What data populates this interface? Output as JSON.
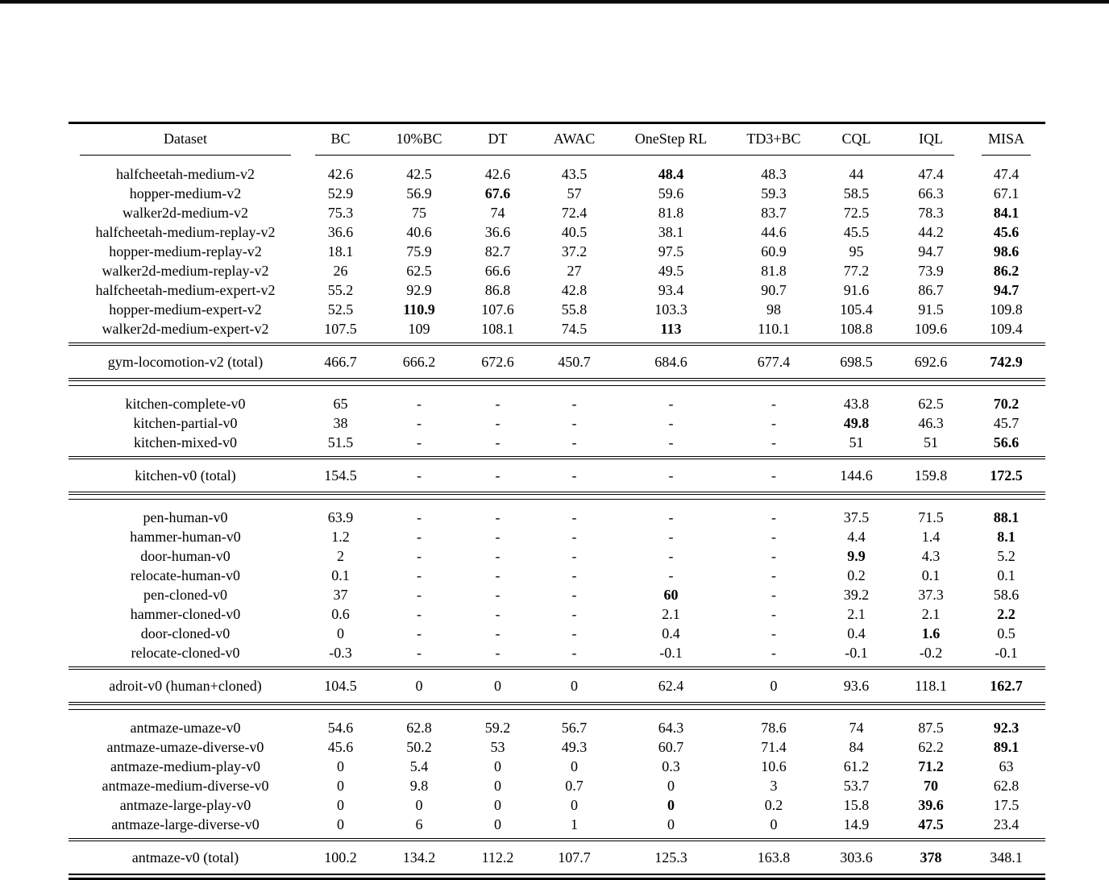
{
  "page": {
    "background": "#ffffff",
    "top_border_color": "#0a0a0a",
    "rule_color": "#000000",
    "text_color": "#000000"
  },
  "table": {
    "columns": [
      "Dataset",
      "BC",
      "10%BC",
      "DT",
      "AWAC",
      "OneStep RL",
      "TD3+BC",
      "CQL",
      "IQL",
      "MISA"
    ],
    "missing_value_symbol": "-",
    "sections": [
      {
        "rows": [
          {
            "dataset": "halfcheetah-medium-v2",
            "values": [
              "42.6",
              "42.5",
              "42.6",
              "43.5",
              "48.4",
              "48.3",
              "44",
              "47.4",
              "47.4"
            ],
            "bold": [
              4
            ]
          },
          {
            "dataset": "hopper-medium-v2",
            "values": [
              "52.9",
              "56.9",
              "67.6",
              "57",
              "59.6",
              "59.3",
              "58.5",
              "66.3",
              "67.1"
            ],
            "bold": [
              2
            ]
          },
          {
            "dataset": "walker2d-medium-v2",
            "values": [
              "75.3",
              "75",
              "74",
              "72.4",
              "81.8",
              "83.7",
              "72.5",
              "78.3",
              "84.1"
            ],
            "bold": [
              8
            ]
          },
          {
            "dataset": "halfcheetah-medium-replay-v2",
            "values": [
              "36.6",
              "40.6",
              "36.6",
              "40.5",
              "38.1",
              "44.6",
              "45.5",
              "44.2",
              "45.6"
            ],
            "bold": [
              8
            ]
          },
          {
            "dataset": "hopper-medium-replay-v2",
            "values": [
              "18.1",
              "75.9",
              "82.7",
              "37.2",
              "97.5",
              "60.9",
              "95",
              "94.7",
              "98.6"
            ],
            "bold": [
              8
            ]
          },
          {
            "dataset": "walker2d-medium-replay-v2",
            "values": [
              "26",
              "62.5",
              "66.6",
              "27",
              "49.5",
              "81.8",
              "77.2",
              "73.9",
              "86.2"
            ],
            "bold": [
              8
            ]
          },
          {
            "dataset": "halfcheetah-medium-expert-v2",
            "values": [
              "55.2",
              "92.9",
              "86.8",
              "42.8",
              "93.4",
              "90.7",
              "91.6",
              "86.7",
              "94.7"
            ],
            "bold": [
              8
            ]
          },
          {
            "dataset": "hopper-medium-expert-v2",
            "values": [
              "52.5",
              "110.9",
              "107.6",
              "55.8",
              "103.3",
              "98",
              "105.4",
              "91.5",
              "109.8"
            ],
            "bold": [
              1
            ]
          },
          {
            "dataset": "walker2d-medium-expert-v2",
            "values": [
              "107.5",
              "109",
              "108.1",
              "74.5",
              "113",
              "110.1",
              "108.8",
              "109.6",
              "109.4"
            ],
            "bold": [
              4
            ]
          }
        ],
        "total": {
          "dataset": "gym-locomotion-v2 (total)",
          "values": [
            "466.7",
            "666.2",
            "672.6",
            "450.7",
            "684.6",
            "677.4",
            "698.5",
            "692.6",
            "742.9"
          ],
          "bold": [
            8
          ]
        }
      },
      {
        "rows": [
          {
            "dataset": "kitchen-complete-v0",
            "values": [
              "65",
              "-",
              "-",
              "-",
              "-",
              "-",
              "43.8",
              "62.5",
              "70.2"
            ],
            "bold": [
              8
            ]
          },
          {
            "dataset": "kitchen-partial-v0",
            "values": [
              "38",
              "-",
              "-",
              "-",
              "-",
              "-",
              "49.8",
              "46.3",
              "45.7"
            ],
            "bold": [
              6
            ]
          },
          {
            "dataset": "kitchen-mixed-v0",
            "values": [
              "51.5",
              "-",
              "-",
              "-",
              "-",
              "-",
              "51",
              "51",
              "56.6"
            ],
            "bold": [
              8
            ]
          }
        ],
        "total": {
          "dataset": "kitchen-v0 (total)",
          "values": [
            "154.5",
            "-",
            "-",
            "-",
            "-",
            "-",
            "144.6",
            "159.8",
            "172.5"
          ],
          "bold": [
            8
          ]
        }
      },
      {
        "rows": [
          {
            "dataset": "pen-human-v0",
            "values": [
              "63.9",
              "-",
              "-",
              "-",
              "-",
              "-",
              "37.5",
              "71.5",
              "88.1"
            ],
            "bold": [
              8
            ]
          },
          {
            "dataset": "hammer-human-v0",
            "values": [
              "1.2",
              "-",
              "-",
              "-",
              "-",
              "-",
              "4.4",
              "1.4",
              "8.1"
            ],
            "bold": [
              8
            ]
          },
          {
            "dataset": "door-human-v0",
            "values": [
              "2",
              "-",
              "-",
              "-",
              "-",
              "-",
              "9.9",
              "4.3",
              "5.2"
            ],
            "bold": [
              6
            ]
          },
          {
            "dataset": "relocate-human-v0",
            "values": [
              "0.1",
              "-",
              "-",
              "-",
              "-",
              "-",
              "0.2",
              "0.1",
              "0.1"
            ],
            "bold": []
          },
          {
            "dataset": "pen-cloned-v0",
            "values": [
              "37",
              "-",
              "-",
              "-",
              "60",
              "-",
              "39.2",
              "37.3",
              "58.6"
            ],
            "bold": [
              4
            ]
          },
          {
            "dataset": "hammer-cloned-v0",
            "values": [
              "0.6",
              "-",
              "-",
              "-",
              "2.1",
              "-",
              "2.1",
              "2.1",
              "2.2"
            ],
            "bold": [
              8
            ]
          },
          {
            "dataset": "door-cloned-v0",
            "values": [
              "0",
              "-",
              "-",
              "-",
              "0.4",
              "-",
              "0.4",
              "1.6",
              "0.5"
            ],
            "bold": [
              7
            ]
          },
          {
            "dataset": "relocate-cloned-v0",
            "values": [
              "-0.3",
              "-",
              "-",
              "-",
              "-0.1",
              "-",
              "-0.1",
              "-0.2",
              "-0.1"
            ],
            "bold": []
          }
        ],
        "total": {
          "dataset": "adroit-v0 (human+cloned)",
          "values": [
            "104.5",
            "0",
            "0",
            "0",
            "62.4",
            "0",
            "93.6",
            "118.1",
            "162.7"
          ],
          "bold": [
            8
          ]
        }
      },
      {
        "rows": [
          {
            "dataset": "antmaze-umaze-v0",
            "values": [
              "54.6",
              "62.8",
              "59.2",
              "56.7",
              "64.3",
              "78.6",
              "74",
              "87.5",
              "92.3"
            ],
            "bold": [
              8
            ]
          },
          {
            "dataset": "antmaze-umaze-diverse-v0",
            "values": [
              "45.6",
              "50.2",
              "53",
              "49.3",
              "60.7",
              "71.4",
              "84",
              "62.2",
              "89.1"
            ],
            "bold": [
              8
            ]
          },
          {
            "dataset": "antmaze-medium-play-v0",
            "values": [
              "0",
              "5.4",
              "0",
              "0",
              "0.3",
              "10.6",
              "61.2",
              "71.2",
              "63"
            ],
            "bold": [
              7
            ]
          },
          {
            "dataset": "antmaze-medium-diverse-v0",
            "values": [
              "0",
              "9.8",
              "0",
              "0.7",
              "0",
              "3",
              "53.7",
              "70",
              "62.8"
            ],
            "bold": [
              7
            ]
          },
          {
            "dataset": "antmaze-large-play-v0",
            "values": [
              "0",
              "0",
              "0",
              "0",
              "0",
              "0.2",
              "15.8",
              "39.6",
              "17.5"
            ],
            "bold": [
              4,
              7
            ]
          },
          {
            "dataset": "antmaze-large-diverse-v0",
            "values": [
              "0",
              "6",
              "0",
              "1",
              "0",
              "0",
              "14.9",
              "47.5",
              "23.4"
            ],
            "bold": [
              7
            ]
          }
        ],
        "total": {
          "dataset": "antmaze-v0 (total)",
          "values": [
            "100.2",
            "134.2",
            "112.2",
            "107.7",
            "125.3",
            "163.8",
            "303.6",
            "378",
            "348.1"
          ],
          "bold": [
            7
          ]
        }
      }
    ]
  }
}
